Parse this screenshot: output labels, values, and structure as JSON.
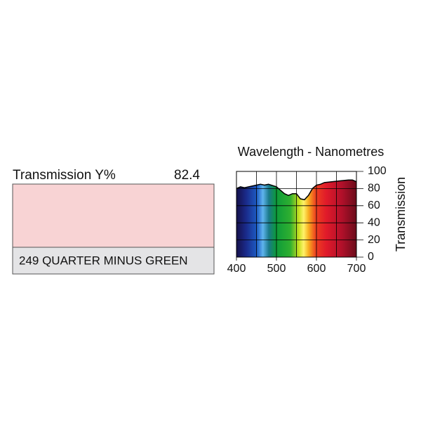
{
  "swatch": {
    "label": "Transmission Y%",
    "value": "82.4",
    "name": "249 QUARTER MINUS GREEN",
    "color": "#f8d3d4"
  },
  "chart_data": {
    "type": "area",
    "title": "Wavelength - Nanometres",
    "y_label": "Transmission",
    "x": [
      400,
      410,
      420,
      440,
      460,
      470,
      480,
      500,
      510,
      520,
      530,
      540,
      550,
      560,
      570,
      580,
      590,
      600,
      610,
      620,
      640,
      660,
      680,
      690,
      700
    ],
    "values": [
      80,
      82,
      81,
      83,
      85,
      84,
      85,
      82,
      78,
      74,
      72,
      74,
      74,
      68,
      67,
      72,
      80,
      84,
      85,
      87,
      88,
      89,
      90,
      90,
      88
    ],
    "xlim": [
      400,
      700
    ],
    "ylim": [
      0,
      100
    ],
    "xticks": [
      400,
      500,
      600,
      700
    ],
    "yticks": [
      0,
      20,
      40,
      60,
      80,
      100
    ],
    "grid": true
  }
}
